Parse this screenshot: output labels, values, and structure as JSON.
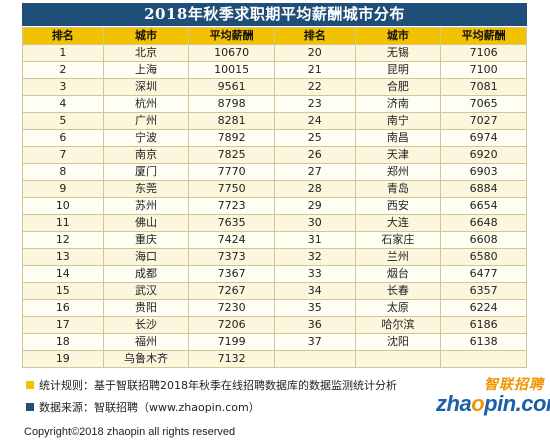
{
  "title": "2018年秋季求职期平均薪酬城市分布",
  "colors": {
    "title_bg": "#1f4e79",
    "header_bg": "#f2c200",
    "note_yellow": "#f2c200",
    "note_blue": "#1f4e79",
    "logo_orange": "#f29500",
    "logo_blue": "#1a5fa8"
  },
  "table": {
    "headers": [
      "排名",
      "城市",
      "平均薪酬",
      "排名",
      "城市",
      "平均薪酬"
    ],
    "rows": [
      [
        "1",
        "北京",
        "10670",
        "20",
        "无锡",
        "7106"
      ],
      [
        "2",
        "上海",
        "10015",
        "21",
        "昆明",
        "7100"
      ],
      [
        "3",
        "深圳",
        "9561",
        "22",
        "合肥",
        "7081"
      ],
      [
        "4",
        "杭州",
        "8798",
        "23",
        "济南",
        "7065"
      ],
      [
        "5",
        "广州",
        "8281",
        "24",
        "南宁",
        "7027"
      ],
      [
        "6",
        "宁波",
        "7892",
        "25",
        "南昌",
        "6974"
      ],
      [
        "7",
        "南京",
        "7825",
        "26",
        "天津",
        "6920"
      ],
      [
        "8",
        "厦门",
        "7770",
        "27",
        "郑州",
        "6903"
      ],
      [
        "9",
        "东莞",
        "7750",
        "28",
        "青岛",
        "6884"
      ],
      [
        "10",
        "苏州",
        "7723",
        "29",
        "西安",
        "6654"
      ],
      [
        "11",
        "佛山",
        "7635",
        "30",
        "大连",
        "6648"
      ],
      [
        "12",
        "重庆",
        "7424",
        "31",
        "石家庄",
        "6608"
      ],
      [
        "13",
        "海口",
        "7373",
        "32",
        "兰州",
        "6580"
      ],
      [
        "14",
        "成都",
        "7367",
        "33",
        "烟台",
        "6477"
      ],
      [
        "15",
        "武汉",
        "7267",
        "34",
        "长春",
        "6357"
      ],
      [
        "16",
        "贵阳",
        "7230",
        "35",
        "太原",
        "6224"
      ],
      [
        "17",
        "长沙",
        "7206",
        "36",
        "哈尔滨",
        "6186"
      ],
      [
        "18",
        "福州",
        "7199",
        "37",
        "沈阳",
        "6138"
      ],
      [
        "19",
        "乌鲁木齐",
        "7132",
        "",
        "",
        ""
      ]
    ]
  },
  "notes": {
    "rule": "统计规则：基于智联招聘2018年秋季在线招聘数据库的数据监测统计分析",
    "source": "数据来源：智联招聘（www.zhaopin.com）"
  },
  "logo": {
    "cn": "智联招聘",
    "en_pre": "zha",
    "en_o": "o",
    "en_post": "pin.com"
  },
  "footer": "Copyright©2018 zhaopin all rights reserved"
}
